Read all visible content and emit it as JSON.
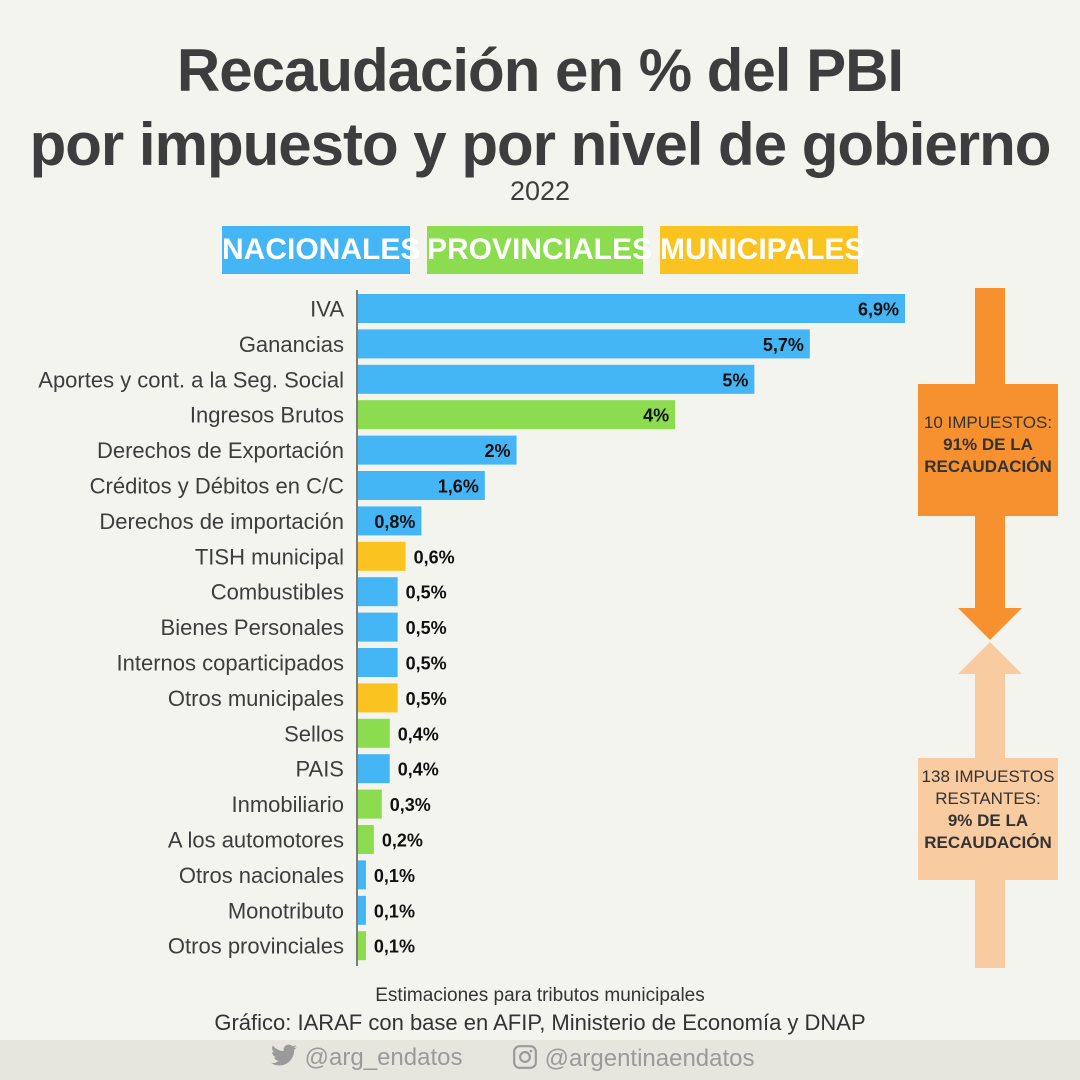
{
  "header": {
    "title_line1": "Recaudación en % del PBI",
    "title_line2": "por impuesto y por nivel de gobierno",
    "subtitle": "2022"
  },
  "legend": [
    {
      "label": "NACIONALES",
      "color": "#45b6f5"
    },
    {
      "label": "PROVINCIALES",
      "color": "#8bdc4e"
    },
    {
      "label": "MUNICIPALES",
      "color": "#fbc31f"
    }
  ],
  "chart_data": {
    "type": "bar",
    "orientation": "horizontal",
    "unit": "% del PBI",
    "categories": [
      "IVA",
      "Ganancias",
      "Aportes y cont. a la Seg. Social",
      "Ingresos Brutos",
      "Derechos de Exportación",
      "Créditos y Débitos en C/C",
      "Derechos de importación",
      "TISH municipal",
      "Combustibles",
      "Bienes Personales",
      "Internos coparticipados",
      "Otros municipales",
      "Sellos",
      "PAIS",
      "Inmobiliario",
      "A los automotores",
      "Otros nacionales",
      "Monotributo",
      "Otros provinciales"
    ],
    "values": [
      6.9,
      5.7,
      5,
      4,
      2,
      1.6,
      0.8,
      0.6,
      0.5,
      0.5,
      0.5,
      0.5,
      0.4,
      0.4,
      0.3,
      0.2,
      0.1,
      0.1,
      0.1
    ],
    "value_labels": [
      "6,9%",
      "5,7%",
      "5%",
      "4%",
      "2%",
      "1,6%",
      "0,8%",
      "0,6%",
      "0,5%",
      "0,5%",
      "0,5%",
      "0,5%",
      "0,4%",
      "0,4%",
      "0,3%",
      "0,2%",
      "0,1%",
      "0,1%",
      "0,1%"
    ],
    "levels": [
      "NACIONALES",
      "NACIONALES",
      "NACIONALES",
      "PROVINCIALES",
      "NACIONALES",
      "NACIONALES",
      "NACIONALES",
      "MUNICIPALES",
      "NACIONALES",
      "NACIONALES",
      "NACIONALES",
      "MUNICIPALES",
      "PROVINCIALES",
      "NACIONALES",
      "PROVINCIALES",
      "PROVINCIALES",
      "NACIONALES",
      "NACIONALES",
      "PROVINCIALES"
    ],
    "xlim": [
      0,
      6.9
    ]
  },
  "annotations": {
    "top_box": {
      "line1": "10 IMPUESTOS:",
      "line2": "91% DE LA",
      "line3": "RECAUDACIÓN",
      "color": "#f7902f"
    },
    "bottom_box": {
      "line1": "138 IMPUESTOS",
      "line2": "RESTANTES:",
      "line3": "9% DE LA",
      "line4": "RECAUDACIÓN",
      "color": "#f9cba0"
    }
  },
  "footer": {
    "note": "Estimaciones para tributos municipales",
    "source": "Gráfico: IARAF con base en AFIP, Ministerio de Economía y DNAP",
    "twitter": "@arg_endatos",
    "instagram": "@argentinaendatos",
    "twitter_icon": "twitter-bird-icon",
    "instagram_icon": "instagram-camera-icon"
  }
}
